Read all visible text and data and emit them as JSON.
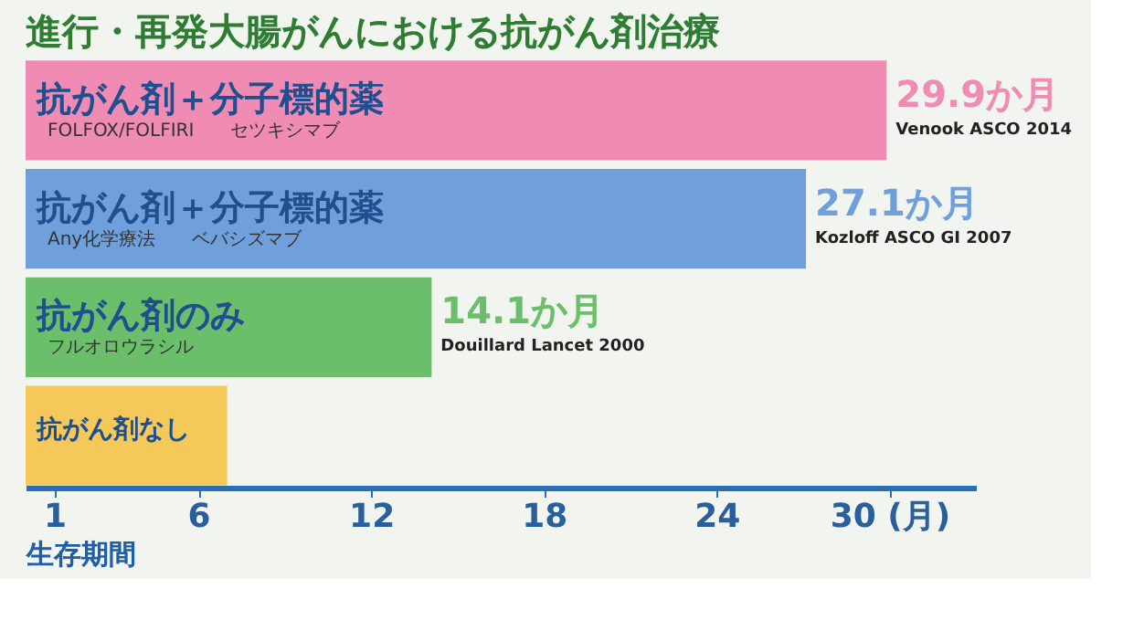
{
  "chart_data": {
    "type": "bar",
    "orientation": "horizontal",
    "title": "進行・再発大腸がんにおける抗がん剤治療",
    "xlabel": "生存期間",
    "categories": [
      "抗がん剤＋分子標的薬",
      "抗がん剤＋分子標的薬",
      "抗がん剤のみ",
      "抗がん剤なし"
    ],
    "values": [
      29.9,
      27.1,
      14.1,
      7
    ],
    "colors": [
      "#f08cb4",
      "#6fa0dc",
      "#6cbf6a",
      "#f5c85a"
    ],
    "value_labels": [
      "29.9か月",
      "27.1か月",
      "14.1か月",
      null
    ],
    "annotations": [
      "FOLFOX/FOLFIRI　　セツキシマブ",
      "Any化学療法　　ベバシズマブ",
      "フルオロウラシル",
      "Venook ASCO 2014",
      "Kozloff ASCO GI 2007",
      "Douillard Lancet 2000"
    ],
    "xlim": [
      0,
      33
    ],
    "xticks": [
      1,
      6,
      12,
      18,
      24,
      {
        "value": 30,
        "label": "30 (月)"
      }
    ],
    "grid": false
  }
}
